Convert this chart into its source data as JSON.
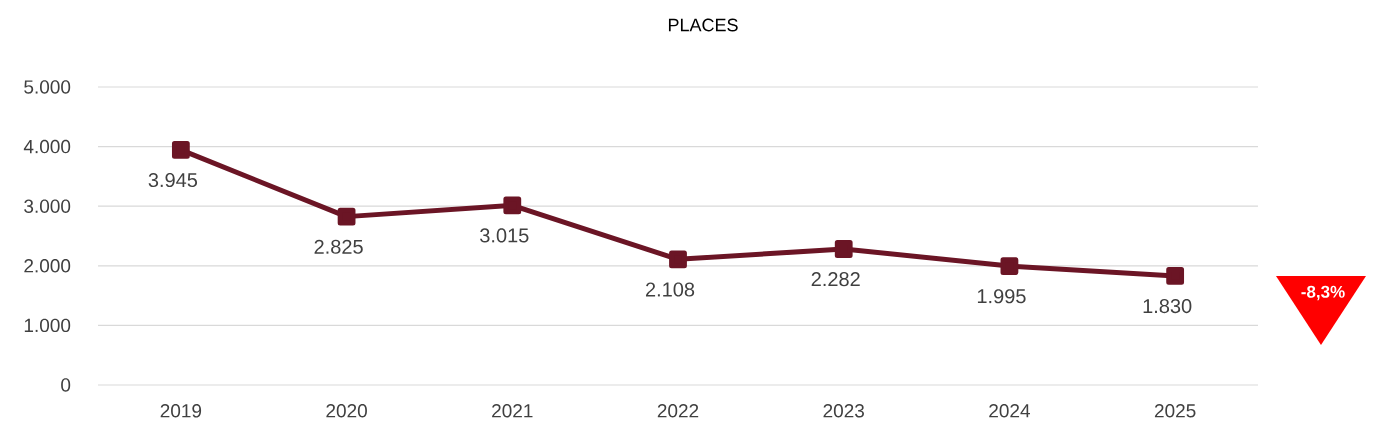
{
  "chart_data": {
    "type": "line",
    "title": "PLACES",
    "categories": [
      "2019",
      "2020",
      "2021",
      "2022",
      "2023",
      "2024",
      "2025"
    ],
    "series": [
      {
        "color": "#6b1525",
        "values": [
          3945,
          2825,
          3015,
          2108,
          2282,
          1995,
          1830
        ],
        "value_labels": [
          "3.945",
          "2.825",
          "3.015",
          "2.108",
          "2.282",
          "1.995",
          "1.830"
        ]
      }
    ],
    "ylim": [
      0,
      5000
    ],
    "yticks": [
      0,
      {
        "value": 1000,
        "label": "1.000"
      },
      {
        "value": 2000,
        "label": "2.000"
      },
      {
        "value": 3000,
        "label": "3.000"
      },
      {
        "value": 4000,
        "label": "4.000"
      },
      {
        "value": 5000,
        "label": "5.000"
      }
    ],
    "grid": "y",
    "marker": "square",
    "line_style": "solid",
    "annotations": [
      "-8,3%"
    ]
  }
}
